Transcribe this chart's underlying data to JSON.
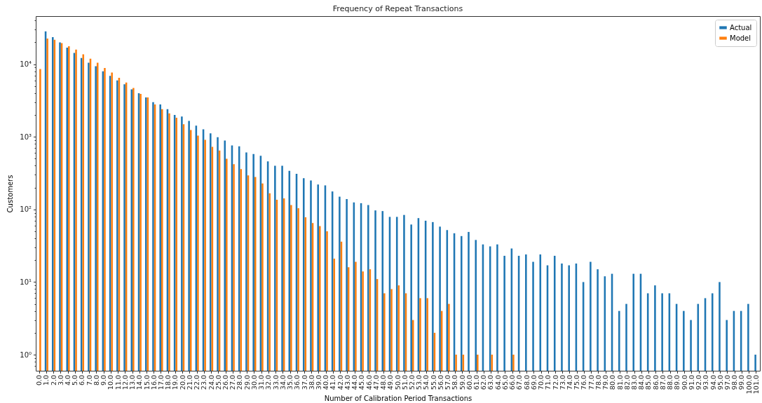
{
  "chart_data": {
    "type": "bar",
    "title": "Frequency of Repeat Transactions",
    "xlabel": "Number of Calibration Period Transactions",
    "ylabel": "Customers",
    "categories": [
      "0.0",
      "1.0",
      "2.0",
      "3.0",
      "4.0",
      "5.0",
      "6.0",
      "7.0",
      "8.0",
      "9.0",
      "10.0",
      "11.0",
      "12.0",
      "13.0",
      "14.0",
      "15.0",
      "16.0",
      "17.0",
      "18.0",
      "19.0",
      "20.0",
      "21.0",
      "22.0",
      "23.0",
      "24.0",
      "25.0",
      "26.0",
      "27.0",
      "28.0",
      "29.0",
      "30.0",
      "31.0",
      "32.0",
      "33.0",
      "34.0",
      "35.0",
      "36.0",
      "37.0",
      "38.0",
      "39.0",
      "40.0",
      "41.0",
      "42.0",
      "43.0",
      "44.0",
      "45.0",
      "46.0",
      "47.0",
      "48.0",
      "49.0",
      "50.0",
      "51.0",
      "52.0",
      "53.0",
      "54.0",
      "55.0",
      "56.0",
      "57.0",
      "58.0",
      "59.0",
      "60.0",
      "61.0",
      "62.0",
      "63.0",
      "64.0",
      "65.0",
      "66.0",
      "67.0",
      "68.0",
      "69.0",
      "70.0",
      "71.0",
      "72.0",
      "73.0",
      "74.0",
      "75.0",
      "76.0",
      "77.0",
      "78.0",
      "79.0",
      "80.0",
      "81.0",
      "82.0",
      "83.0",
      "84.0",
      "85.0",
      "86.0",
      "87.0",
      "88.0",
      "89.0",
      "90.0",
      "91.0",
      "92.0",
      "93.0",
      "94.0",
      "95.0",
      "97.0",
      "98.0",
      "99.0",
      "100.0",
      "101.0"
    ],
    "series": [
      {
        "name": "Actual",
        "color": "#1f77b4",
        "values": [
          null,
          28400,
          23600,
          20000,
          16900,
          14300,
          12200,
          10500,
          9400,
          8000,
          6900,
          6000,
          5300,
          4500,
          4000,
          3500,
          3000,
          2800,
          2400,
          2000,
          1900,
          1660,
          1430,
          1270,
          1120,
          990,
          890,
          760,
          740,
          610,
          580,
          550,
          460,
          400,
          400,
          340,
          310,
          270,
          250,
          220,
          215,
          177,
          150,
          139,
          125,
          122,
          115,
          97,
          95,
          79,
          79,
          84,
          62,
          76,
          70,
          67,
          58,
          52,
          47,
          43,
          49,
          38,
          33,
          31,
          33,
          23,
          29,
          23,
          24,
          19,
          24,
          17,
          23,
          18,
          17,
          18,
          10,
          19,
          15,
          12,
          13,
          4,
          5,
          13,
          13,
          7,
          9,
          7,
          7,
          5,
          4,
          3,
          5,
          6,
          7,
          10,
          3,
          4,
          4,
          5,
          1
        ]
      },
      {
        "name": "Model",
        "color": "#ff7f0e",
        "values": [
          8600,
          22600,
          21700,
          19500,
          17700,
          15900,
          13700,
          11900,
          10500,
          8900,
          7700,
          6500,
          5600,
          4700,
          3900,
          3500,
          2800,
          2400,
          2100,
          1830,
          1490,
          1240,
          1040,
          910,
          730,
          650,
          500,
          420,
          360,
          294,
          280,
          228,
          167,
          136,
          142,
          115,
          104,
          78,
          65,
          59,
          50,
          21,
          36,
          16,
          19,
          14,
          15,
          11,
          7,
          8,
          9,
          7,
          3,
          6,
          6,
          2,
          4,
          5,
          1,
          1,
          null,
          1,
          null,
          1,
          null,
          null,
          1,
          null,
          null,
          null,
          null,
          null,
          null,
          null,
          null,
          null,
          null,
          null,
          null,
          null,
          null,
          null,
          null,
          null,
          null,
          null,
          null,
          null,
          null,
          null,
          null,
          null,
          null,
          null,
          null,
          null,
          null,
          null,
          null,
          null,
          null
        ]
      }
    ],
    "log": true,
    "ylim": [
      0.6,
      46000
    ],
    "yticks": [
      {
        "value": 0.7,
        "label": null
      },
      {
        "value": 0.8,
        "label": null
      },
      {
        "value": 0.9,
        "label": null
      },
      {
        "value": 1,
        "label": "10⁰"
      },
      {
        "value": 2,
        "label": null
      },
      {
        "value": 3,
        "label": null
      },
      {
        "value": 4,
        "label": null
      },
      {
        "value": 5,
        "label": null
      },
      {
        "value": 6,
        "label": null
      },
      {
        "value": 7,
        "label": null
      },
      {
        "value": 8,
        "label": null
      },
      {
        "value": 9,
        "label": null
      },
      {
        "value": 10,
        "label": "10¹"
      },
      {
        "value": 20,
        "label": null
      },
      {
        "value": 30,
        "label": null
      },
      {
        "value": 40,
        "label": null
      },
      {
        "value": 50,
        "label": null
      },
      {
        "value": 60,
        "label": null
      },
      {
        "value": 70,
        "label": null
      },
      {
        "value": 80,
        "label": null
      },
      {
        "value": 90,
        "label": null
      },
      {
        "value": 100,
        "label": "10²"
      },
      {
        "value": 200,
        "label": null
      },
      {
        "value": 300,
        "label": null
      },
      {
        "value": 400,
        "label": null
      },
      {
        "value": 500,
        "label": null
      },
      {
        "value": 600,
        "label": null
      },
      {
        "value": 700,
        "label": null
      },
      {
        "value": 800,
        "label": null
      },
      {
        "value": 900,
        "label": null
      },
      {
        "value": 1000,
        "label": "10³"
      },
      {
        "value": 2000,
        "label": null
      },
      {
        "value": 3000,
        "label": null
      },
      {
        "value": 4000,
        "label": null
      },
      {
        "value": 5000,
        "label": null
      },
      {
        "value": 6000,
        "label": null
      },
      {
        "value": 7000,
        "label": null
      },
      {
        "value": 8000,
        "label": null
      },
      {
        "value": 9000,
        "label": null
      },
      {
        "value": 10000,
        "label": "10⁴"
      },
      {
        "value": 20000,
        "label": null
      },
      {
        "value": 30000,
        "label": null
      },
      {
        "value": 40000,
        "label": null
      }
    ],
    "grid": false,
    "legend": "top right"
  }
}
